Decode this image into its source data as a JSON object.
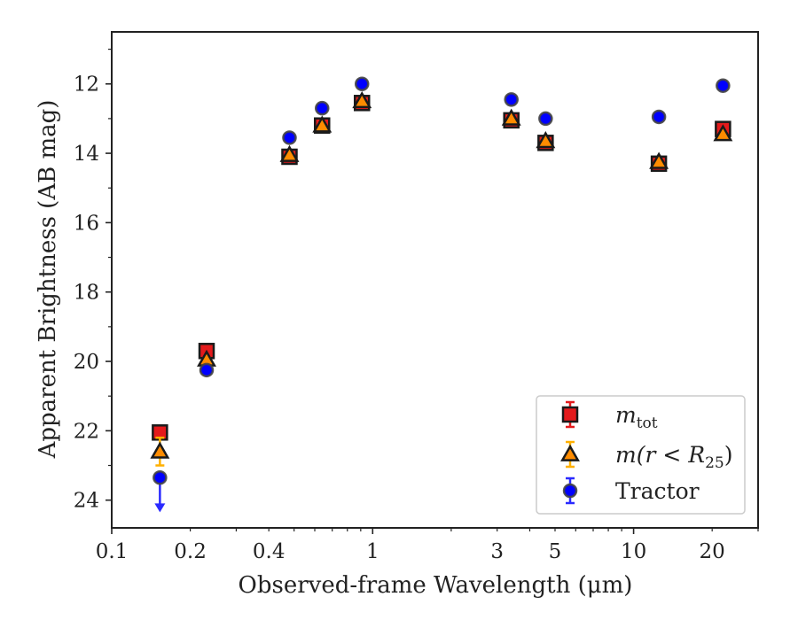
{
  "chart_data": {
    "type": "scatter",
    "xscale": "log",
    "xlim": [
      0.1,
      30
    ],
    "ylim": [
      24.8,
      10.5
    ],
    "y_inverted": true,
    "xlabel": "Observed-frame Wavelength (μm)",
    "ylabel": "Apparent Brightness (AB mag)",
    "xticks": [
      {
        "v": 0.1,
        "label": "0.1"
      },
      {
        "v": 0.2,
        "label": "0.2"
      },
      {
        "v": 0.4,
        "label": "0.4"
      },
      {
        "v": 1,
        "label": "1"
      },
      {
        "v": 3,
        "label": "3"
      },
      {
        "v": 5,
        "label": "5"
      },
      {
        "v": 10,
        "label": "10"
      },
      {
        "v": 20,
        "label": "20"
      }
    ],
    "yticks": [
      {
        "v": 12,
        "label": "12"
      },
      {
        "v": 14,
        "label": "14"
      },
      {
        "v": 16,
        "label": "16"
      },
      {
        "v": 18,
        "label": "18"
      },
      {
        "v": 20,
        "label": "20"
      },
      {
        "v": 22,
        "label": "22"
      },
      {
        "v": 24,
        "label": "24"
      }
    ],
    "grid": false,
    "legend_position": "lower right",
    "series": [
      {
        "name": "m_tot",
        "legend_main": "m",
        "legend_sub": "tot",
        "marker": "square",
        "color": "#e41a1c",
        "errcolor": "#e41a1c",
        "x": [
          0.153,
          0.231,
          0.48,
          0.64,
          0.91,
          3.4,
          4.6,
          12.5,
          22.0
        ],
        "y": [
          22.05,
          19.7,
          14.1,
          13.2,
          12.55,
          13.05,
          13.7,
          14.3,
          13.3
        ],
        "yerr": [
          0.05,
          0.05,
          0.05,
          0.05,
          0.05,
          0.05,
          0.05,
          0.05,
          0.05
        ]
      },
      {
        "name": "m(r < R25)",
        "legend_main": "m(r < R",
        "legend_sub": "25",
        "legend_tail": ")",
        "marker": "triangle",
        "color": "#ff8c00",
        "errcolor": "#ffb000",
        "x": [
          0.153,
          0.231,
          0.48,
          0.64,
          0.91,
          3.4,
          4.6,
          12.5,
          22.0
        ],
        "y": [
          22.6,
          19.95,
          14.05,
          13.2,
          12.5,
          13.0,
          13.65,
          14.25,
          13.45
        ],
        "yerr": [
          0.4,
          0.05,
          0.05,
          0.05,
          0.05,
          0.05,
          0.05,
          0.05,
          0.05
        ]
      },
      {
        "name": "Tractor",
        "legend_main": "Tractor",
        "marker": "circle",
        "color": "#0000ff",
        "errcolor": "#2a2aff",
        "x": [
          0.153,
          0.231,
          0.48,
          0.64,
          0.91,
          3.4,
          4.6,
          12.5,
          22.0
        ],
        "y": [
          23.35,
          20.25,
          13.55,
          12.7,
          12.0,
          12.45,
          13.0,
          12.95,
          12.05
        ],
        "yerr": [
          0,
          0,
          0,
          0,
          0,
          0,
          0,
          0,
          0
        ],
        "upper_limit_index": 0,
        "upper_limit_to": 24.3
      }
    ]
  }
}
